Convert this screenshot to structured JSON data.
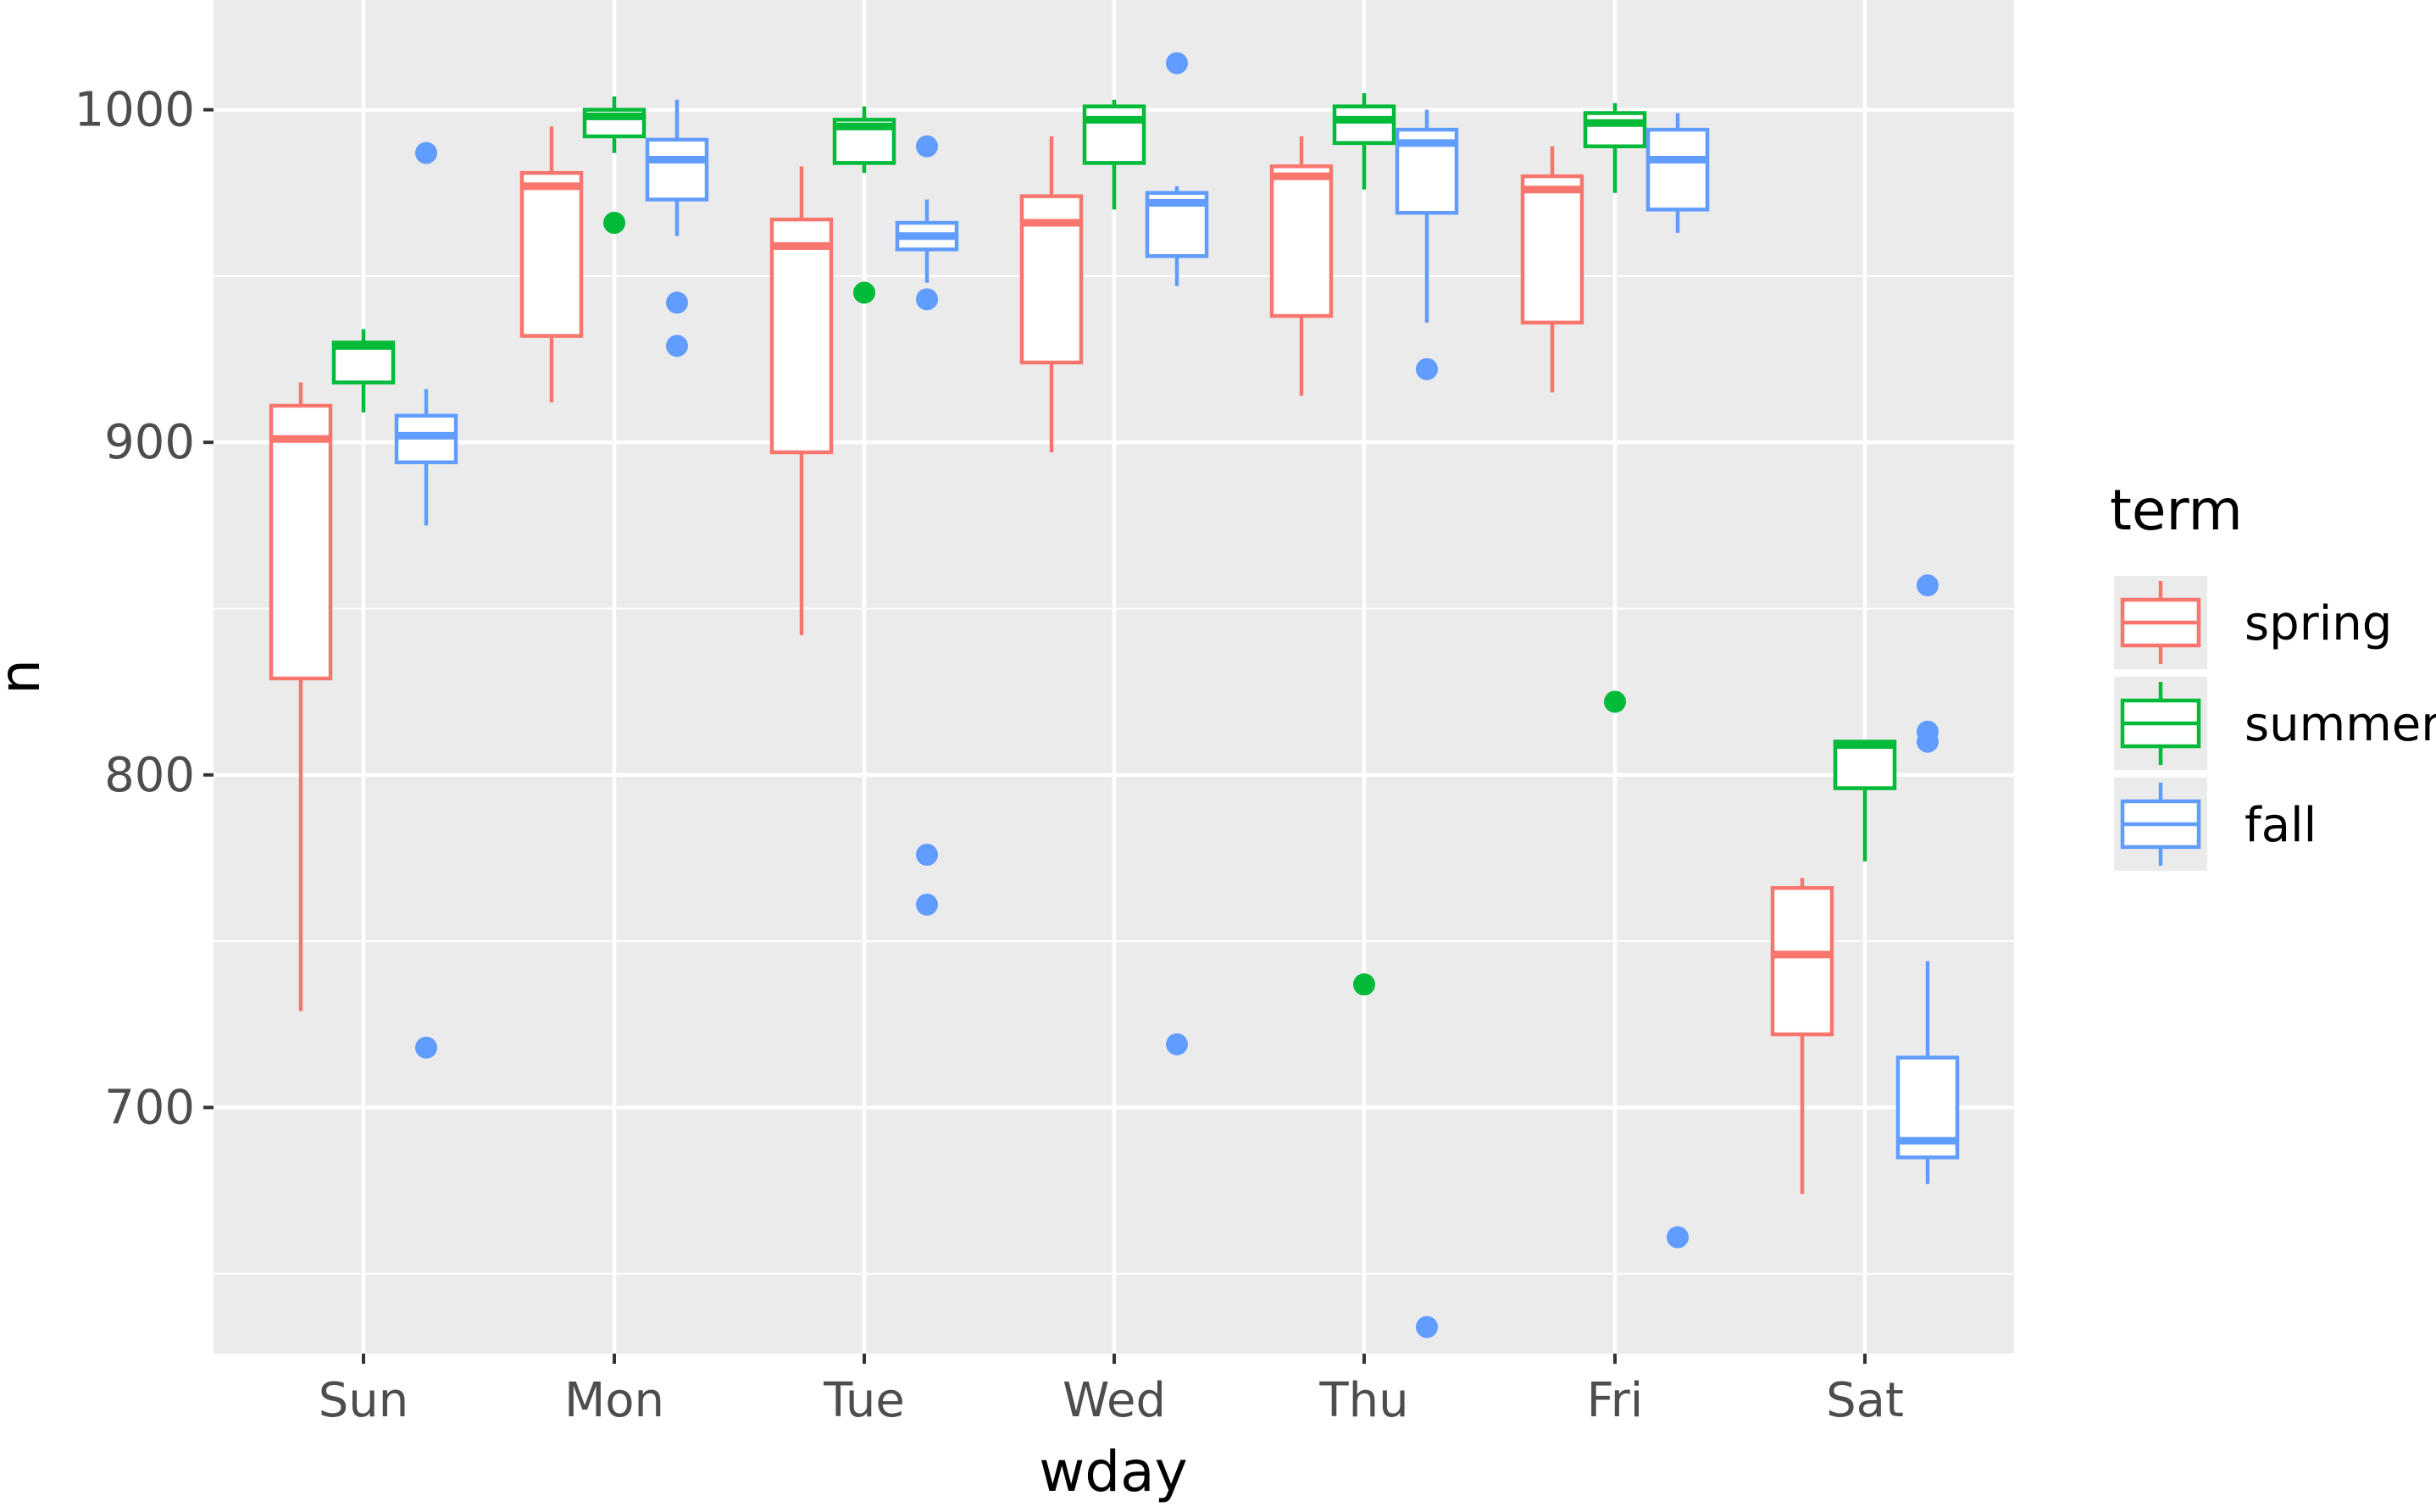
{
  "chart_data": {
    "type": "boxplot",
    "xlabel": "wday",
    "ylabel": "n",
    "categories": [
      "Sun",
      "Mon",
      "Tue",
      "Wed",
      "Thu",
      "Fri",
      "Sat"
    ],
    "ylim": [
      626,
      1033
    ],
    "y_ticks": [
      700,
      800,
      900,
      1000
    ],
    "y_minor_ticks": [
      650,
      750,
      850,
      950
    ],
    "grid": true,
    "panel_background": "#ebebeb",
    "grid_color": "#ffffff",
    "legend": {
      "title": "term",
      "position": "right",
      "entries": [
        {
          "label": "spring",
          "color": "#F8766D"
        },
        {
          "label": "summer",
          "color": "#00BA38"
        },
        {
          "label": "fall",
          "color": "#619CFF"
        }
      ]
    },
    "series": [
      {
        "name": "spring",
        "color": "#F8766D",
        "boxes": [
          {
            "lower_whisker": 729,
            "q1": 829,
            "median": 901,
            "q3": 911,
            "upper_whisker": 918,
            "outliers": []
          },
          {
            "lower_whisker": 912,
            "q1": 932,
            "median": 977,
            "q3": 981,
            "upper_whisker": 995,
            "outliers": []
          },
          {
            "lower_whisker": 842,
            "q1": 897,
            "median": 959,
            "q3": 967,
            "upper_whisker": 983,
            "outliers": []
          },
          {
            "lower_whisker": 897,
            "q1": 924,
            "median": 966,
            "q3": 974,
            "upper_whisker": 992,
            "outliers": []
          },
          {
            "lower_whisker": 914,
            "q1": 938,
            "median": 980,
            "q3": 983,
            "upper_whisker": 992,
            "outliers": []
          },
          {
            "lower_whisker": 915,
            "q1": 936,
            "median": 976,
            "q3": 980,
            "upper_whisker": 989,
            "outliers": []
          },
          {
            "lower_whisker": 674,
            "q1": 722,
            "median": 746,
            "q3": 766,
            "upper_whisker": 769,
            "outliers": []
          }
        ]
      },
      {
        "name": "summer",
        "color": "#00BA38",
        "boxes": [
          {
            "lower_whisker": 909,
            "q1": 918,
            "median": 929,
            "q3": 930,
            "upper_whisker": 934,
            "outliers": []
          },
          {
            "lower_whisker": 987,
            "q1": 992,
            "median": 998,
            "q3": 1000,
            "upper_whisker": 1004,
            "outliers": [
              966
            ]
          },
          {
            "lower_whisker": 981,
            "q1": 984,
            "median": 995,
            "q3": 997,
            "upper_whisker": 1001,
            "outliers": [
              945
            ]
          },
          {
            "lower_whisker": 970,
            "q1": 984,
            "median": 997,
            "q3": 1001,
            "upper_whisker": 1003,
            "outliers": []
          },
          {
            "lower_whisker": 976,
            "q1": 990,
            "median": 997,
            "q3": 1001,
            "upper_whisker": 1005,
            "outliers": [
              737
            ]
          },
          {
            "lower_whisker": 975,
            "q1": 989,
            "median": 996,
            "q3": 999,
            "upper_whisker": 1002,
            "outliers": [
              822
            ]
          },
          {
            "lower_whisker": 774,
            "q1": 796,
            "median": 809,
            "q3": 810,
            "upper_whisker": 810,
            "outliers": []
          }
        ]
      },
      {
        "name": "fall",
        "color": "#619CFF",
        "boxes": [
          {
            "lower_whisker": 875,
            "q1": 894,
            "median": 902,
            "q3": 908,
            "upper_whisker": 916,
            "outliers": [
              987,
              718
            ]
          },
          {
            "lower_whisker": 962,
            "q1": 973,
            "median": 985,
            "q3": 991,
            "upper_whisker": 1003,
            "outliers": [
              942,
              929
            ]
          },
          {
            "lower_whisker": 948,
            "q1": 958,
            "median": 962,
            "q3": 966,
            "upper_whisker": 973,
            "outliers": [
              989,
              943,
              776,
              761
            ]
          },
          {
            "lower_whisker": 947,
            "q1": 956,
            "median": 972,
            "q3": 975,
            "upper_whisker": 977,
            "outliers": [
              1014,
              719
            ]
          },
          {
            "lower_whisker": 936,
            "q1": 969,
            "median": 990,
            "q3": 994,
            "upper_whisker": 1000,
            "outliers": [
              922,
              634
            ]
          },
          {
            "lower_whisker": 963,
            "q1": 970,
            "median": 985,
            "q3": 994,
            "upper_whisker": 999,
            "outliers": [
              661
            ]
          },
          {
            "lower_whisker": 677,
            "q1": 685,
            "median": 690,
            "q3": 715,
            "upper_whisker": 744,
            "outliers": [
              857,
              813,
              810
            ]
          }
        ]
      }
    ]
  }
}
